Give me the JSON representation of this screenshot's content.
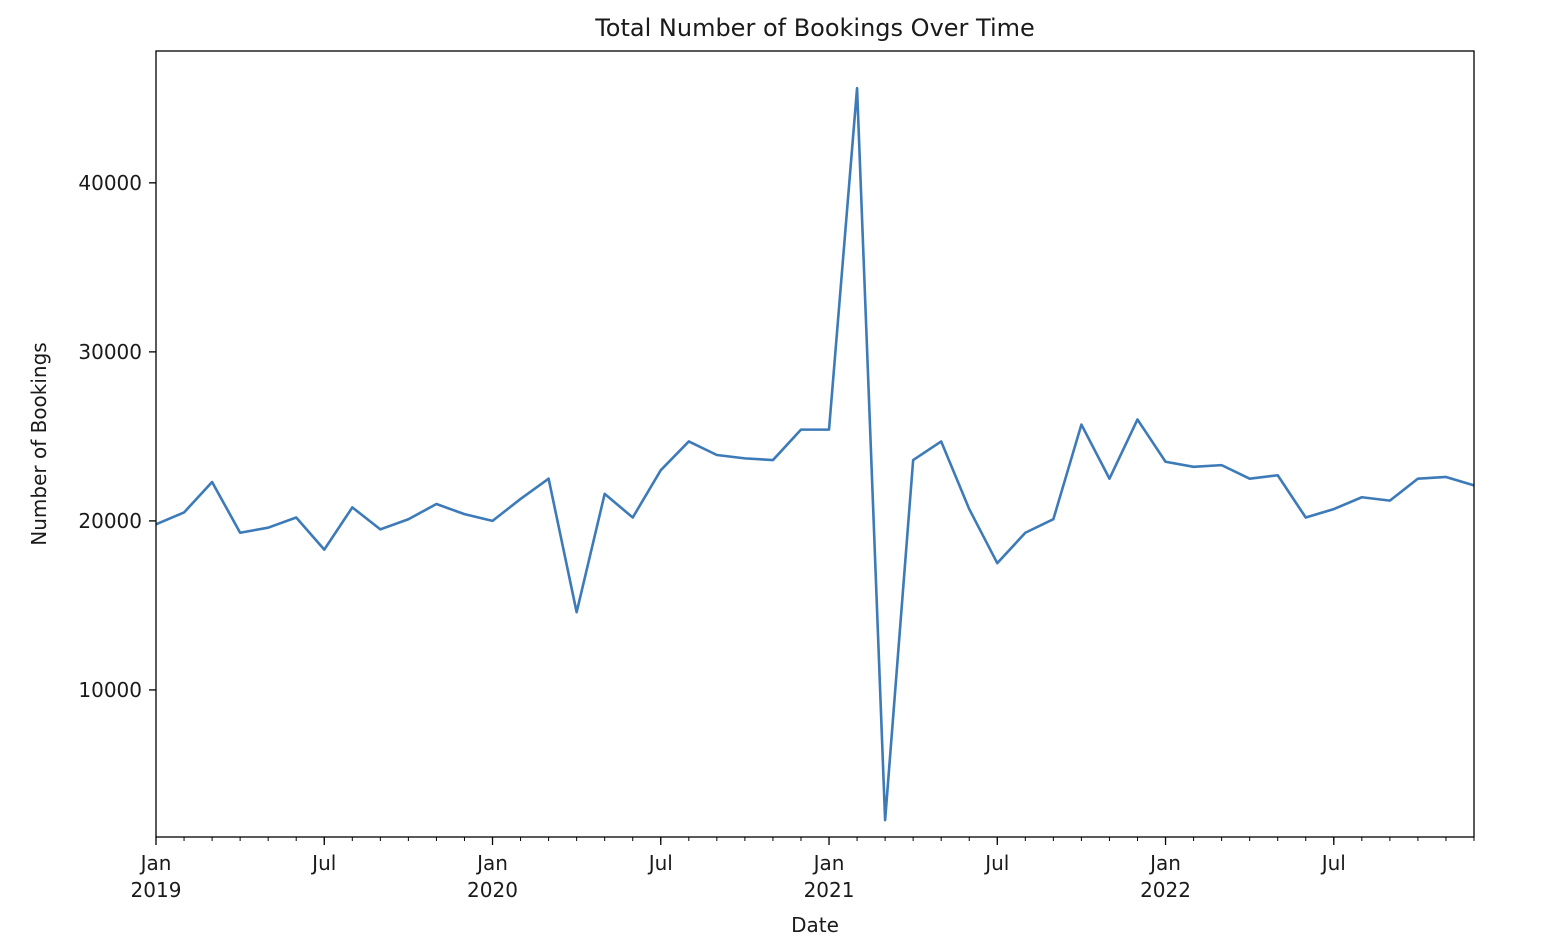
{
  "chart_data": {
    "type": "line",
    "title": "Total Number of Bookings Over Time",
    "xlabel": "Date",
    "ylabel": "Number of Bookings",
    "x_range": [
      "2019-01",
      "2022-12"
    ],
    "ylim": [
      1300,
      47800
    ],
    "grid": false,
    "y_ticks": [
      10000,
      20000,
      30000,
      40000
    ],
    "x_major_ticks": [
      {
        "date": "2019-01",
        "label": "Jan",
        "year": "2019"
      },
      {
        "date": "2019-07",
        "label": "Jul",
        "year": ""
      },
      {
        "date": "2020-01",
        "label": "Jan",
        "year": "2020"
      },
      {
        "date": "2020-07",
        "label": "Jul",
        "year": ""
      },
      {
        "date": "2021-01",
        "label": "Jan",
        "year": "2021"
      },
      {
        "date": "2021-07",
        "label": "Jul",
        "year": ""
      },
      {
        "date": "2022-01",
        "label": "Jan",
        "year": "2022"
      },
      {
        "date": "2022-07",
        "label": "Jul",
        "year": ""
      }
    ],
    "series": [
      {
        "color": "#3d7ab8",
        "x": [
          "2019-01",
          "2019-02",
          "2019-03",
          "2019-04",
          "2019-05",
          "2019-06",
          "2019-07",
          "2019-08",
          "2019-09",
          "2019-10",
          "2019-11",
          "2019-12",
          "2020-01",
          "2020-02",
          "2020-03",
          "2020-04",
          "2020-05",
          "2020-06",
          "2020-07",
          "2020-08",
          "2020-09",
          "2020-10",
          "2020-11",
          "2020-12",
          "2021-01",
          "2021-02",
          "2021-03",
          "2021-04",
          "2021-05",
          "2021-06",
          "2021-07",
          "2021-08",
          "2021-09",
          "2021-10",
          "2021-11",
          "2021-12",
          "2022-01",
          "2022-02",
          "2022-03",
          "2022-04",
          "2022-05",
          "2022-06",
          "2022-07",
          "2022-08",
          "2022-09",
          "2022-10",
          "2022-11",
          "2022-12"
        ],
        "values": [
          19800,
          20500,
          22300,
          19300,
          19600,
          20200,
          18300,
          20800,
          19500,
          20100,
          21000,
          20400,
          20000,
          21300,
          22500,
          14600,
          21600,
          20200,
          23000,
          24700,
          23900,
          23700,
          23600,
          25400,
          25400,
          45600,
          2300,
          23600,
          24700,
          20700,
          17500,
          19300,
          20100,
          25700,
          22500,
          26000,
          23500,
          23200,
          23300,
          22500,
          22700,
          20200,
          20700,
          21400,
          21200,
          22500,
          22600,
          22100
        ]
      }
    ]
  }
}
